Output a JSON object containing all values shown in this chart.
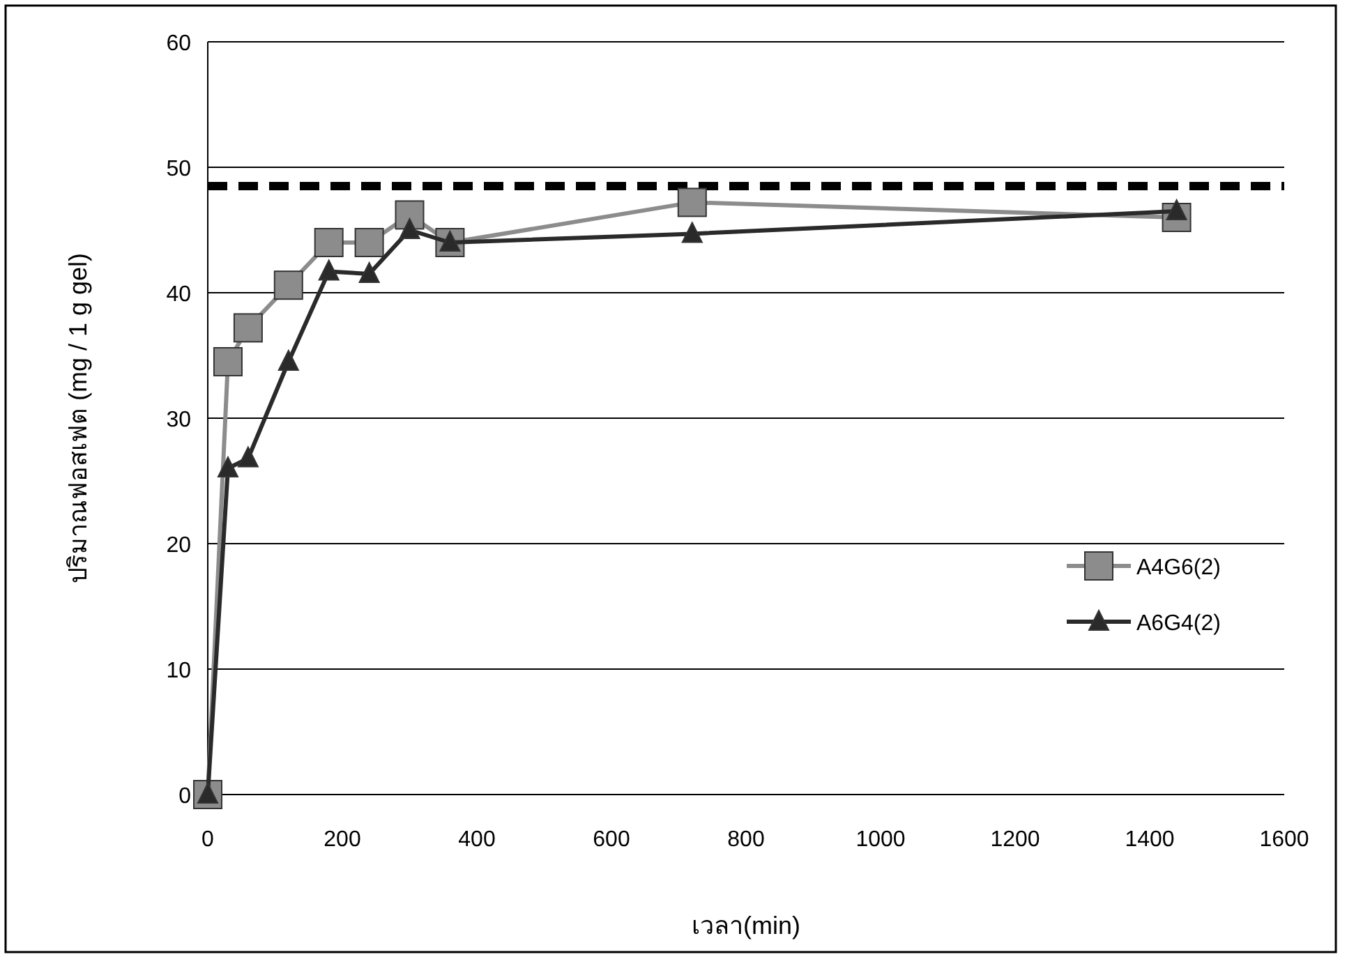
{
  "chart_data": {
    "type": "line",
    "xlabel": "เวลา(min)",
    "ylabel": "ปริมาณฟอสเฟต (mg / 1 g gel)",
    "x": [
      0,
      30,
      60,
      120,
      180,
      240,
      300,
      360,
      720,
      1440
    ],
    "series": [
      {
        "name": "A4G6(2)",
        "color": "#8c8c8c",
        "marker": "square",
        "values": [
          0,
          34.5,
          37.2,
          40.6,
          44,
          44,
          46.2,
          44,
          47.2,
          46
        ]
      },
      {
        "name": "A6G4(2)",
        "color": "#2a2a2a",
        "marker": "triangle",
        "values": [
          0,
          26,
          26.8,
          34.5,
          41.7,
          41.5,
          45,
          44,
          44.7,
          46.5
        ]
      }
    ],
    "ref_lines": [
      {
        "axis": "y",
        "value": 48.5,
        "color": "#000000",
        "line_style": "dashed"
      }
    ],
    "xlim": [
      0,
      1600
    ],
    "xticks": [
      0,
      200,
      400,
      600,
      800,
      1000,
      1200,
      1400,
      1600
    ],
    "ylim": [
      0,
      60
    ],
    "yticks": [
      0,
      10,
      20,
      30,
      40,
      50,
      60
    ],
    "grid": "y",
    "legend": "right",
    "line_style": "solid"
  }
}
